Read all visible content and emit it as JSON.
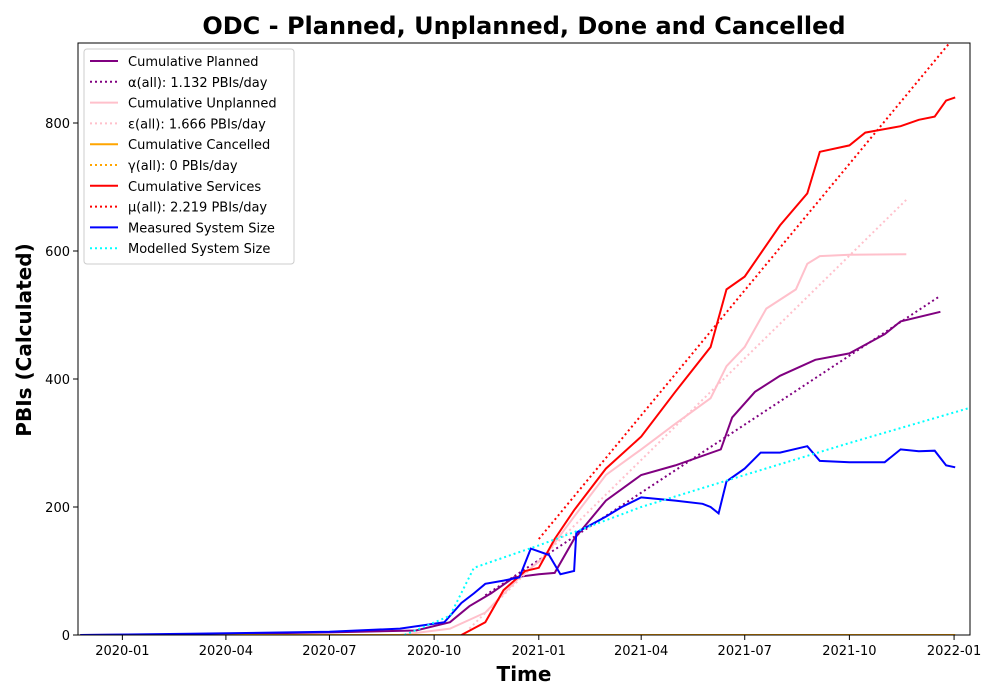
{
  "chart_data": {
    "type": "line",
    "title": "ODC - Planned, Unplanned, Done  and Cancelled",
    "xlabel": "Time",
    "ylabel": "PBIs (Calculated)",
    "xlim": [
      "2019-11-23",
      "2022-01-15"
    ],
    "ylim": [
      0,
      925
    ],
    "x_ticks": [
      "2020-01",
      "2020-04",
      "2020-07",
      "2020-10",
      "2021-01",
      "2021-04",
      "2021-07",
      "2021-10",
      "2022-01"
    ],
    "y_ticks": [
      0,
      200,
      400,
      600,
      800
    ],
    "grid": false,
    "legend_position": "top-left",
    "series": [
      {
        "name": "Cumulative Planned",
        "color": "#800080",
        "style": "solid",
        "points": [
          [
            "2019-11-25",
            0
          ],
          [
            "2020-03-01",
            1
          ],
          [
            "2020-07-01",
            4
          ],
          [
            "2020-09-15",
            7
          ],
          [
            "2020-10-15",
            20
          ],
          [
            "2020-11-01",
            45
          ],
          [
            "2020-11-20",
            65
          ],
          [
            "2020-12-10",
            90
          ],
          [
            "2021-01-01",
            95
          ],
          [
            "2021-01-15",
            97
          ],
          [
            "2021-02-01",
            150
          ],
          [
            "2021-03-01",
            210
          ],
          [
            "2021-04-01",
            250
          ],
          [
            "2021-05-01",
            265
          ],
          [
            "2021-06-10",
            290
          ],
          [
            "2021-06-20",
            340
          ],
          [
            "2021-07-10",
            380
          ],
          [
            "2021-08-01",
            405
          ],
          [
            "2021-09-01",
            430
          ],
          [
            "2021-10-01",
            440
          ],
          [
            "2021-11-01",
            470
          ],
          [
            "2021-11-15",
            490
          ],
          [
            "2021-12-20",
            505
          ]
        ]
      },
      {
        "name": "α(all): 1.132 PBIs/day",
        "color": "#800080",
        "style": "dotted",
        "points": [
          [
            "2020-11-15",
            62
          ],
          [
            "2021-12-20",
            530
          ]
        ]
      },
      {
        "name": "Cumulative Unplanned",
        "color": "#ffc0cb",
        "style": "solid",
        "points": [
          [
            "2020-09-01",
            0
          ],
          [
            "2020-10-15",
            10
          ],
          [
            "2020-11-15",
            35
          ],
          [
            "2020-12-15",
            90
          ],
          [
            "2021-01-05",
            120
          ],
          [
            "2021-02-01",
            185
          ],
          [
            "2021-03-01",
            250
          ],
          [
            "2021-04-01",
            290
          ],
          [
            "2021-05-01",
            330
          ],
          [
            "2021-06-01",
            370
          ],
          [
            "2021-06-15",
            420
          ],
          [
            "2021-07-01",
            450
          ],
          [
            "2021-07-20",
            510
          ],
          [
            "2021-08-15",
            540
          ],
          [
            "2021-08-25",
            580
          ],
          [
            "2021-09-05",
            592
          ],
          [
            "2021-10-01",
            594
          ],
          [
            "2021-11-20",
            595
          ]
        ]
      },
      {
        "name": "ε(all): 1.666 PBIs/day",
        "color": "#ffc0cb",
        "style": "dotted",
        "points": [
          [
            "2020-11-01",
            10
          ],
          [
            "2021-11-20",
            680
          ]
        ]
      },
      {
        "name": "Cumulative Cancelled",
        "color": "#ffa500",
        "style": "solid",
        "points": [
          [
            "2019-11-25",
            0
          ],
          [
            "2022-01-02",
            0
          ]
        ]
      },
      {
        "name": "γ(all): 0 PBIs/day",
        "color": "#ffa500",
        "style": "dotted",
        "points": [
          [
            "2019-11-25",
            0
          ],
          [
            "2022-01-02",
            0
          ]
        ]
      },
      {
        "name": "Cumulative Services",
        "color": "#ff0000",
        "style": "solid",
        "points": [
          [
            "2020-10-25",
            0
          ],
          [
            "2020-11-15",
            20
          ],
          [
            "2020-12-01",
            70
          ],
          [
            "2020-12-20",
            100
          ],
          [
            "2021-01-01",
            105
          ],
          [
            "2021-01-15",
            150
          ],
          [
            "2021-02-01",
            195
          ],
          [
            "2021-03-01",
            260
          ],
          [
            "2021-04-01",
            310
          ],
          [
            "2021-05-01",
            380
          ],
          [
            "2021-06-01",
            450
          ],
          [
            "2021-06-15",
            540
          ],
          [
            "2021-07-01",
            560
          ],
          [
            "2021-08-01",
            640
          ],
          [
            "2021-08-25",
            690
          ],
          [
            "2021-09-05",
            755
          ],
          [
            "2021-10-01",
            765
          ],
          [
            "2021-10-15",
            785
          ],
          [
            "2021-11-15",
            795
          ],
          [
            "2021-12-01",
            805
          ],
          [
            "2021-12-15",
            810
          ],
          [
            "2021-12-25",
            835
          ],
          [
            "2022-01-02",
            840
          ]
        ]
      },
      {
        "name": "μ(all): 2.219 PBIs/day",
        "color": "#ff0000",
        "style": "dotted",
        "points": [
          [
            "2021-01-01",
            150
          ],
          [
            "2021-12-28",
            925
          ]
        ]
      },
      {
        "name": "Measured System Size",
        "color": "#0000ff",
        "style": "solid",
        "points": [
          [
            "2019-11-25",
            0
          ],
          [
            "2020-03-01",
            2
          ],
          [
            "2020-07-01",
            5
          ],
          [
            "2020-09-01",
            10
          ],
          [
            "2020-10-10",
            20
          ],
          [
            "2020-10-25",
            50
          ],
          [
            "2020-11-05",
            65
          ],
          [
            "2020-11-15",
            80
          ],
          [
            "2020-12-01",
            85
          ],
          [
            "2020-12-15",
            90
          ],
          [
            "2020-12-25",
            135
          ],
          [
            "2021-01-10",
            125
          ],
          [
            "2021-01-20",
            95
          ],
          [
            "2021-02-01",
            100
          ],
          [
            "2021-02-03",
            160
          ],
          [
            "2021-03-01",
            185
          ],
          [
            "2021-03-15",
            200
          ],
          [
            "2021-04-01",
            215
          ],
          [
            "2021-05-01",
            210
          ],
          [
            "2021-05-25",
            205
          ],
          [
            "2021-06-01",
            200
          ],
          [
            "2021-06-08",
            190
          ],
          [
            "2021-06-15",
            240
          ],
          [
            "2021-07-01",
            260
          ],
          [
            "2021-07-15",
            285
          ],
          [
            "2021-08-01",
            285
          ],
          [
            "2021-08-25",
            295
          ],
          [
            "2021-09-05",
            272
          ],
          [
            "2021-10-01",
            270
          ],
          [
            "2021-11-01",
            270
          ],
          [
            "2021-11-15",
            290
          ],
          [
            "2021-12-01",
            287
          ],
          [
            "2021-12-15",
            288
          ],
          [
            "2021-12-25",
            265
          ],
          [
            "2022-01-02",
            262
          ]
        ]
      },
      {
        "name": "Modelled System Size",
        "color": "#00ffff",
        "style": "dotted",
        "points": [
          [
            "2020-09-05",
            0
          ],
          [
            "2020-10-15",
            30
          ],
          [
            "2020-11-05",
            105
          ],
          [
            "2021-01-01",
            140
          ],
          [
            "2021-04-01",
            200
          ],
          [
            "2021-07-01",
            250
          ],
          [
            "2021-10-01",
            300
          ],
          [
            "2022-01-15",
            355
          ]
        ]
      }
    ]
  }
}
